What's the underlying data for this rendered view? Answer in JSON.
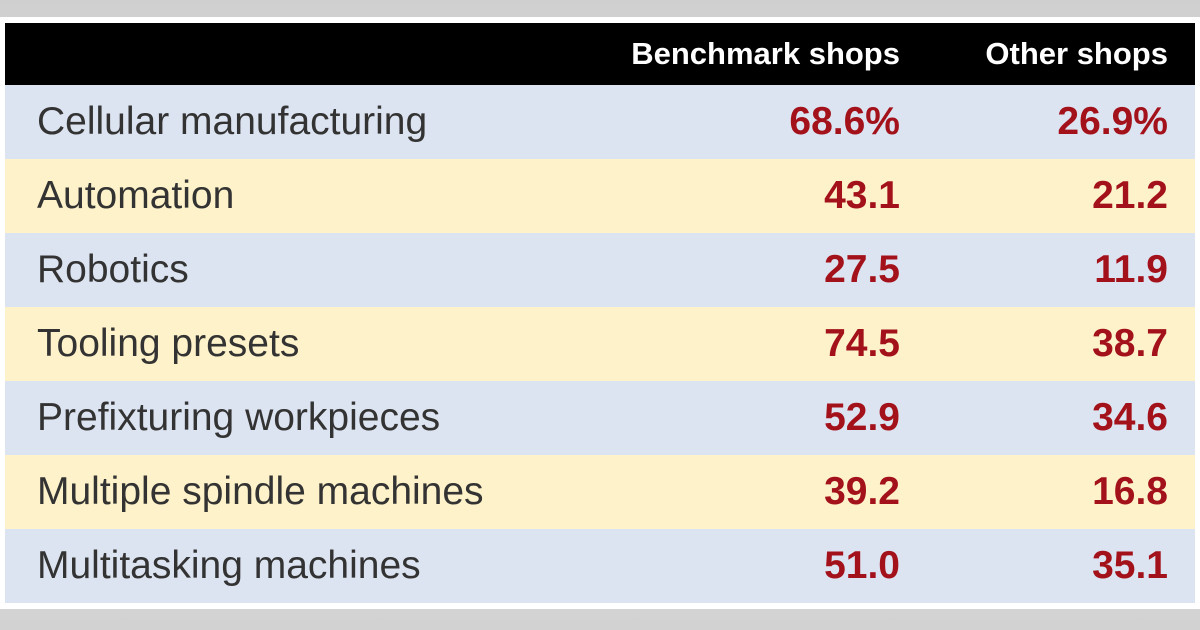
{
  "table": {
    "header": [
      "Benchmark shops",
      "Other shops"
    ],
    "rows": [
      [
        "Cellular manufacturing",
        "68.6%",
        "26.9%"
      ],
      [
        "Automation",
        "43.1",
        "21.2"
      ],
      [
        "Robotics",
        "27.5",
        "11.9"
      ],
      [
        "Tooling presets",
        "74.5",
        "38.7"
      ],
      [
        "Prefixturing workpieces",
        "52.9",
        "34.6"
      ],
      [
        "Multiple spindle machines",
        "39.2",
        "16.8"
      ],
      [
        "Multitasking machines",
        "51.0",
        "35.1"
      ]
    ]
  }
}
